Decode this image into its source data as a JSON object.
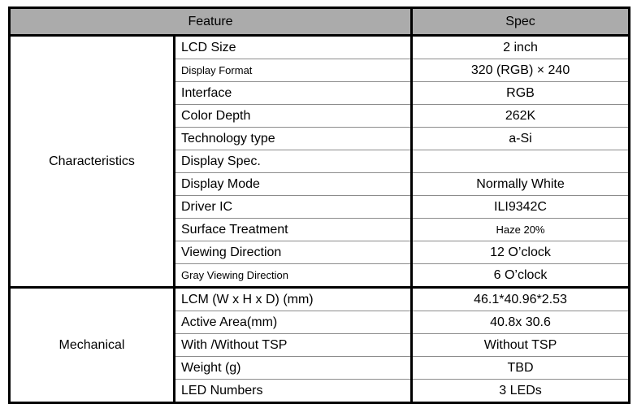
{
  "colors": {
    "header_bg": "#ababab",
    "border": "#000000",
    "row_divider": "#8c8c8c",
    "text": "#000000"
  },
  "table": {
    "header": {
      "feature": "Feature",
      "spec": "Spec"
    },
    "sections": [
      {
        "group": "Characteristics",
        "rows": [
          {
            "feature": "LCD Size",
            "spec": "2 inch"
          },
          {
            "feature": "Display Format",
            "spec": "320 (RGB) × 240"
          },
          {
            "feature": "Interface",
            "spec": "RGB"
          },
          {
            "feature": "Color Depth",
            "spec": "262K"
          },
          {
            "feature": "Technology type",
            "spec": "a-Si"
          },
          {
            "feature": "Display Spec.",
            "spec": ""
          },
          {
            "feature": "Display Mode",
            "spec": "Normally White"
          },
          {
            "feature": "Driver IC",
            "spec": "ILI9342C"
          },
          {
            "feature": "Surface Treatment",
            "spec": "Haze 20%"
          },
          {
            "feature": "Viewing Direction",
            "spec": "12 O’clock"
          },
          {
            "feature": "Gray Viewing Direction",
            "spec": "6 O’clock"
          }
        ]
      },
      {
        "group": "Mechanical",
        "rows": [
          {
            "feature": "LCM (W x H x D) (mm)",
            "spec": "46.1*40.96*2.53"
          },
          {
            "feature": "Active Area(mm)",
            "spec": "40.8x 30.6"
          },
          {
            "feature": "With /Without TSP",
            "spec": "Without TSP"
          },
          {
            "feature": "Weight (g)",
            "spec": "TBD"
          },
          {
            "feature": "LED Numbers",
            "spec": "3 LEDs"
          }
        ]
      }
    ]
  }
}
